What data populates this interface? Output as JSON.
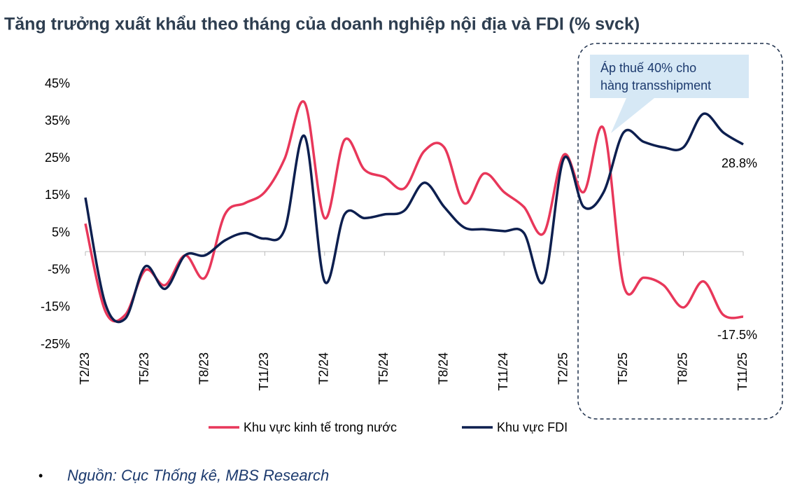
{
  "chart_data": {
    "type": "line",
    "title": "Tăng trưởng xuất khẩu theo tháng của doanh nghiệp nội địa và FDI (% svck)",
    "categories": [
      "T2/23",
      null,
      null,
      "T5/23",
      null,
      null,
      "T8/23",
      null,
      null,
      "T11/23",
      null,
      null,
      "T2/24",
      null,
      null,
      "T5/24",
      null,
      null,
      "T8/24",
      null,
      null,
      "T11/24",
      null,
      null,
      "T2/25",
      null,
      null,
      "T5/25",
      null,
      null,
      "T8/25",
      null,
      null,
      "T11/25"
    ],
    "series": [
      {
        "name": "Khu vực kinh tế trong nước",
        "color": "#e8375a",
        "values": [
          7.5,
          -16,
          -17,
          -5,
          -9,
          -1,
          -7,
          10,
          13,
          16,
          25,
          40,
          9,
          30,
          22,
          20,
          17,
          27,
          28,
          13,
          21,
          16,
          12,
          5,
          26,
          16,
          33,
          -9,
          -7,
          -9,
          -15,
          -8,
          -17,
          -17.5
        ],
        "value_labels": [
          null,
          null,
          null,
          null,
          null,
          null,
          null,
          null,
          null,
          null,
          null,
          null,
          null,
          null,
          null,
          null,
          null,
          null,
          null,
          null,
          null,
          null,
          null,
          null,
          null,
          null,
          null,
          null,
          null,
          null,
          null,
          null,
          null,
          "-17.5%"
        ]
      },
      {
        "name": "Khu vực FDI",
        "color": "#0d1f4f",
        "values": [
          14.5,
          -14,
          -18,
          -4,
          -10,
          -1,
          -1,
          3,
          5,
          3.5,
          6,
          31,
          -8,
          10,
          9,
          10,
          11,
          18.5,
          12,
          6.5,
          6,
          5.5,
          5,
          -8,
          25,
          12,
          16,
          32,
          29.5,
          28,
          28,
          37,
          32,
          28.8
        ],
        "value_labels": [
          null,
          null,
          null,
          null,
          null,
          null,
          null,
          null,
          null,
          null,
          null,
          null,
          null,
          null,
          null,
          null,
          null,
          null,
          null,
          null,
          null,
          null,
          null,
          null,
          null,
          null,
          null,
          null,
          null,
          null,
          null,
          null,
          null,
          "28.8%"
        ]
      }
    ],
    "ylim": [
      -25,
      45
    ],
    "yticks": [
      {
        "value": -25,
        "label": "-25%"
      },
      {
        "value": -15,
        "label": "-15%"
      },
      {
        "value": -5,
        "label": "-5%"
      },
      {
        "value": 5,
        "label": "5%"
      },
      {
        "value": 15,
        "label": "15%"
      },
      {
        "value": 25,
        "label": "25%"
      },
      {
        "value": 35,
        "label": "35%"
      },
      {
        "value": 45,
        "label": "45%"
      }
    ],
    "annotation": [
      "Áp thuế 40% cho",
      "hàng transshipment"
    ],
    "source": "Nguồn: Cục Thống kê, MBS Research",
    "legend": "bottom"
  }
}
